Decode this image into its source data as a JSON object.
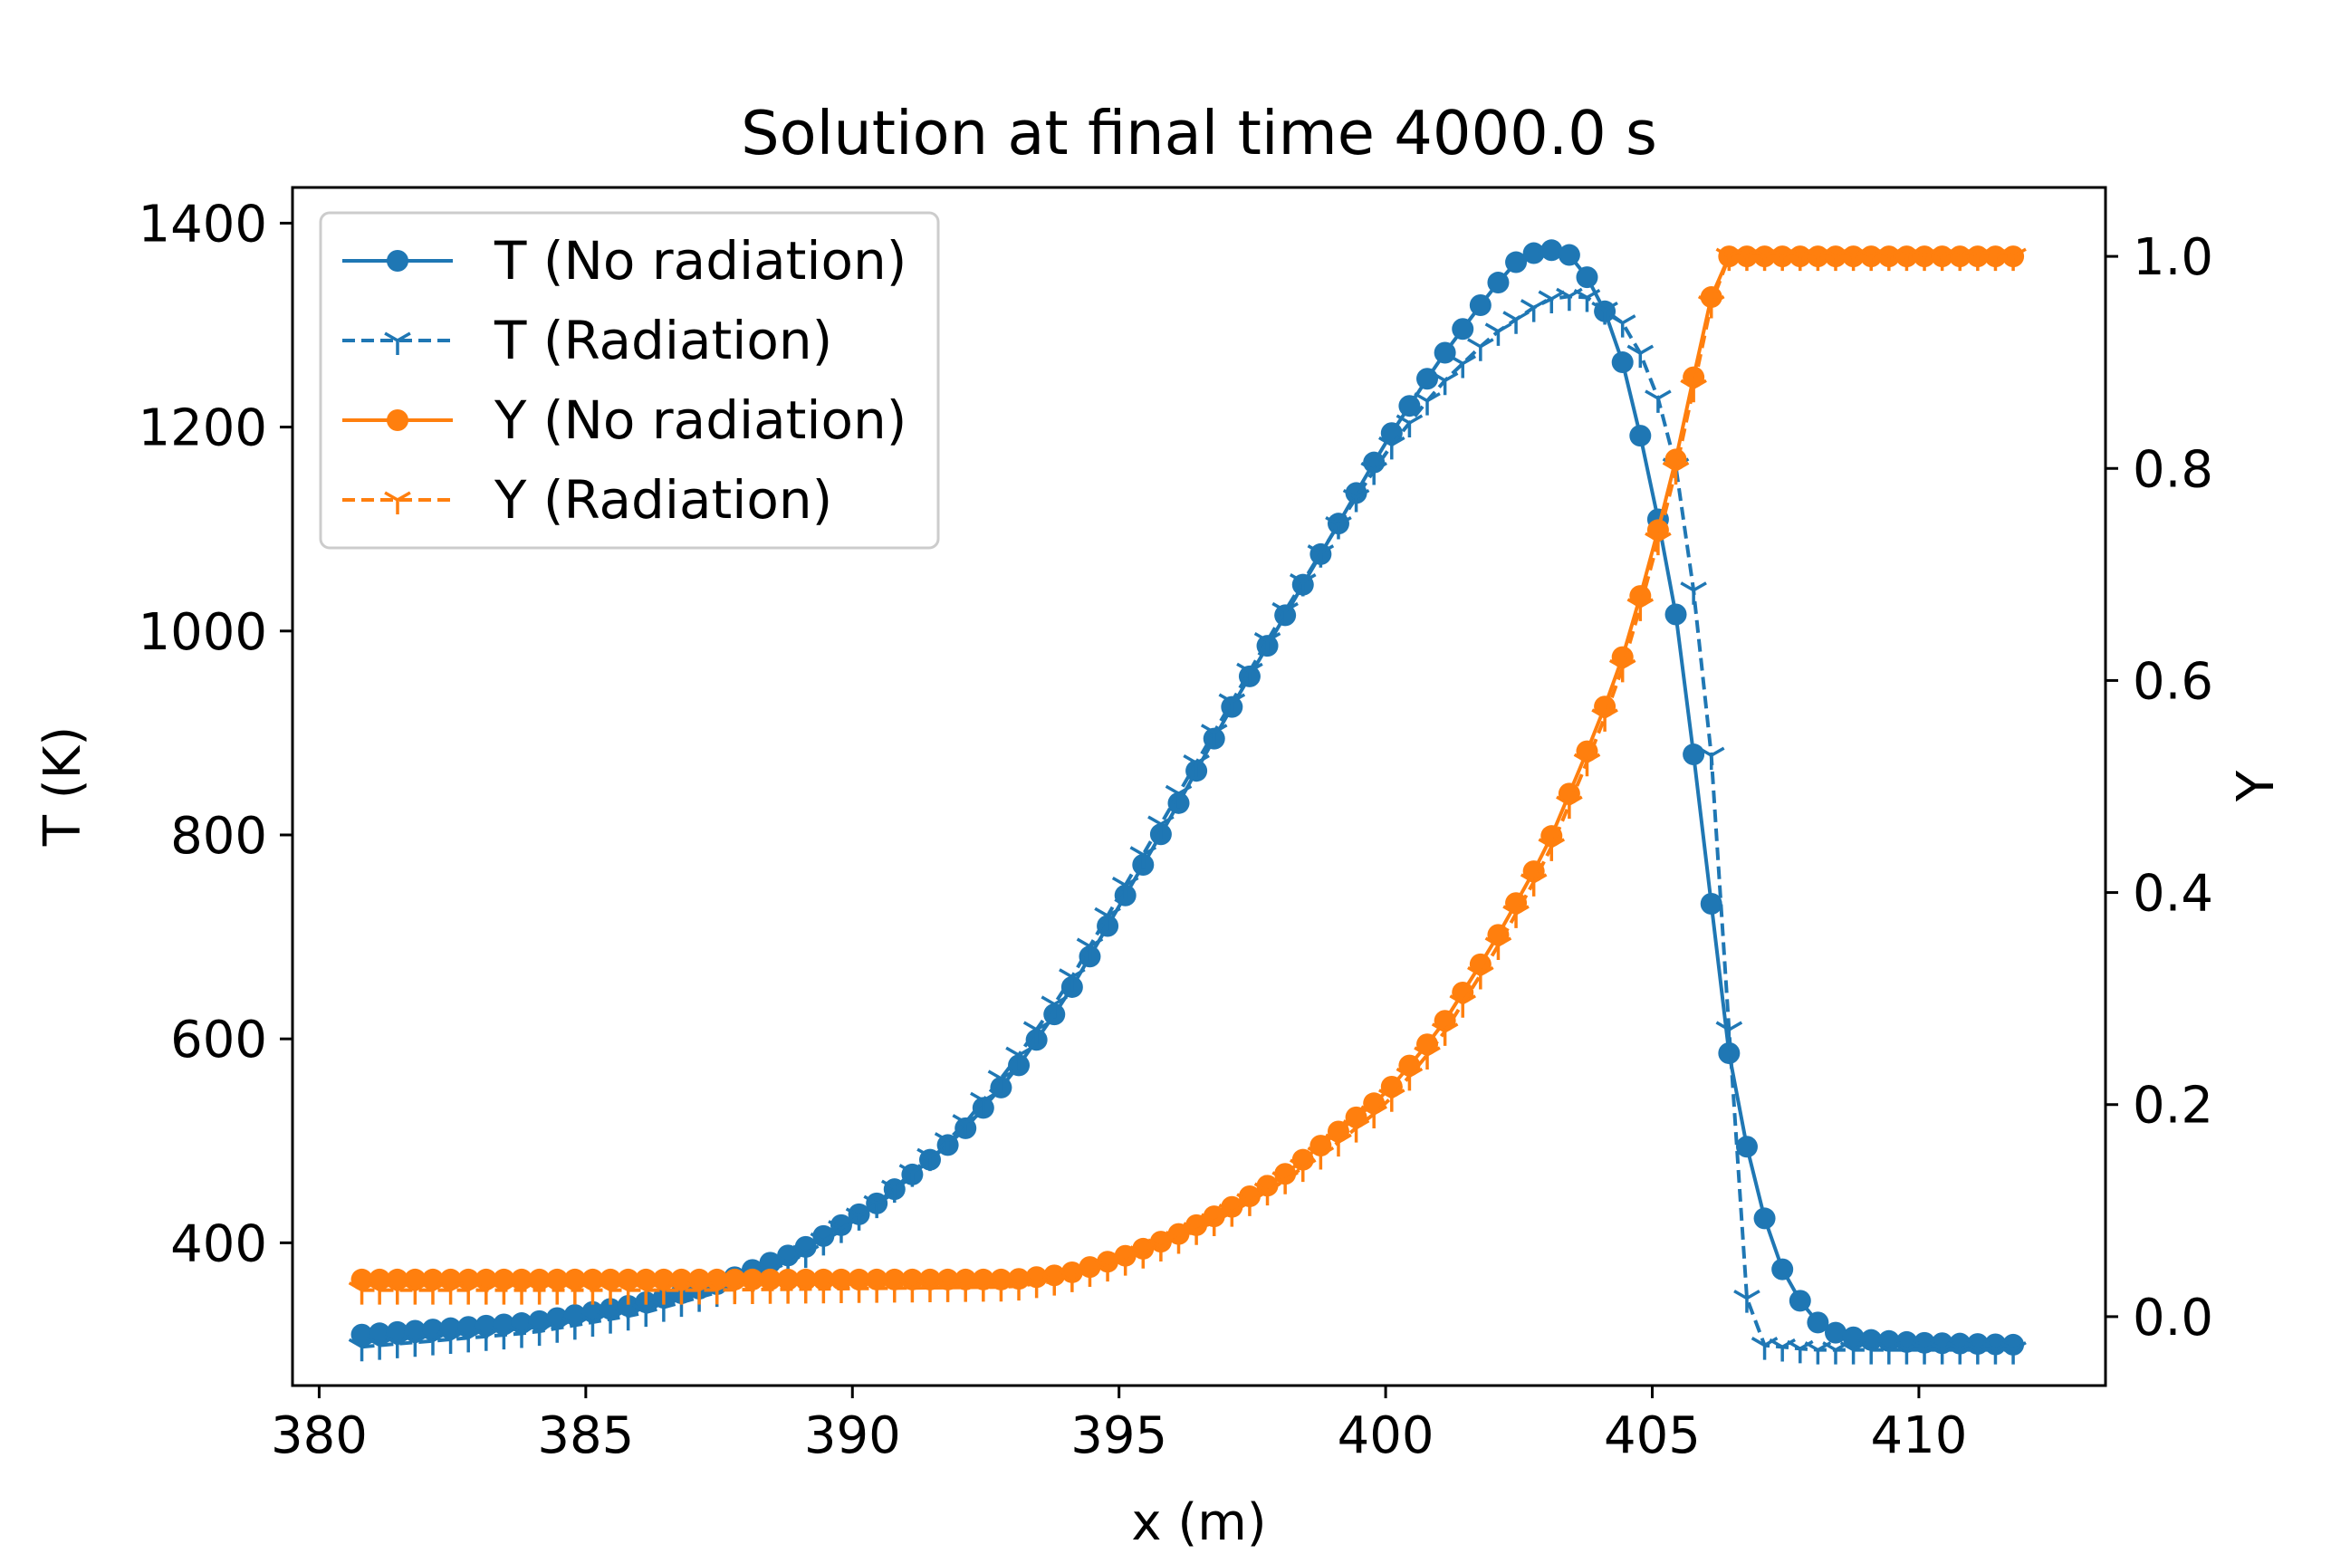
{
  "chart_data": {
    "type": "line",
    "title": "Solution at final time 4000.0 s",
    "xlabel": "x (m)",
    "ylabel_left": "T (K)",
    "ylabel_right": "Y",
    "xlim": [
      379.5,
      413.5
    ],
    "ylim_left": [
      260,
      1435
    ],
    "ylim_right": [
      -0.065,
      1.065
    ],
    "x_ticks": [
      380,
      385,
      390,
      395,
      400,
      405,
      410
    ],
    "y_left_ticks": [
      400,
      600,
      800,
      1000,
      1200,
      1400
    ],
    "y_right_ticks": [
      0.0,
      0.2,
      0.4,
      0.6,
      0.8,
      1.0
    ],
    "y_right_tick_labels": [
      "0.0",
      "0.2",
      "0.4",
      "0.6",
      "0.8",
      "1.0"
    ],
    "grid": false,
    "legend_position": "upper-left",
    "colors": {
      "T": "#1f77b4",
      "Y": "#ff7f0e"
    },
    "x_range": [
      380.8,
      411.8
    ],
    "x_step": 0.333,
    "series": [
      {
        "name": "T (No radiation)",
        "axis": "left",
        "color": "#1f77b4",
        "linestyle": "solid",
        "marker": "circle",
        "points": [
          [
            380.8,
            310
          ],
          [
            384.0,
            322
          ],
          [
            386.0,
            340
          ],
          [
            387.5,
            360
          ],
          [
            389.0,
            392
          ],
          [
            390.5,
            440
          ],
          [
            392.0,
            505
          ],
          [
            393.0,
            565
          ],
          [
            394.0,
            640
          ],
          [
            395.0,
            730
          ],
          [
            396.0,
            820
          ],
          [
            397.0,
            915
          ],
          [
            398.0,
            1005
          ],
          [
            399.0,
            1095
          ],
          [
            400.0,
            1185
          ],
          [
            401.0,
            1265
          ],
          [
            402.0,
            1335
          ],
          [
            402.5,
            1365
          ],
          [
            403.0,
            1375
          ],
          [
            403.5,
            1368
          ],
          [
            404.0,
            1330
          ],
          [
            404.5,
            1255
          ],
          [
            405.0,
            1140
          ],
          [
            405.5,
            1000
          ],
          [
            406.0,
            780
          ],
          [
            406.5,
            560
          ],
          [
            407.0,
            440
          ],
          [
            407.5,
            365
          ],
          [
            408.0,
            325
          ],
          [
            408.5,
            310
          ],
          [
            409.0,
            305
          ],
          [
            410.0,
            302
          ],
          [
            411.8,
            300
          ]
        ]
      },
      {
        "name": "T (Radiation)",
        "axis": "left",
        "color": "#1f77b4",
        "linestyle": "dashed",
        "marker": "tri",
        "points": [
          [
            380.8,
            298
          ],
          [
            384.0,
            312
          ],
          [
            386.0,
            330
          ],
          [
            387.5,
            352
          ],
          [
            389.0,
            385
          ],
          [
            390.5,
            440
          ],
          [
            392.0,
            510
          ],
          [
            393.0,
            575
          ],
          [
            394.0,
            650
          ],
          [
            395.0,
            740
          ],
          [
            396.0,
            830
          ],
          [
            397.0,
            920
          ],
          [
            398.0,
            1010
          ],
          [
            399.0,
            1095
          ],
          [
            400.0,
            1175
          ],
          [
            401.0,
            1240
          ],
          [
            402.0,
            1290
          ],
          [
            403.0,
            1325
          ],
          [
            403.7,
            1330
          ],
          [
            404.5,
            1300
          ],
          [
            405.0,
            1250
          ],
          [
            405.5,
            1150
          ],
          [
            406.0,
            950
          ],
          [
            406.3,
            750
          ],
          [
            406.6,
            450
          ],
          [
            406.8,
            330
          ],
          [
            407.0,
            300
          ],
          [
            408.0,
            295
          ],
          [
            411.8,
            295
          ]
        ]
      },
      {
        "name": "Y (No radiation)",
        "axis": "right",
        "color": "#ff7f0e",
        "linestyle": "solid",
        "marker": "circle",
        "points": [
          [
            380.8,
            0.035
          ],
          [
            387.0,
            0.035
          ],
          [
            393.0,
            0.035
          ],
          [
            394.0,
            0.04
          ],
          [
            395.0,
            0.055
          ],
          [
            396.0,
            0.075
          ],
          [
            397.0,
            0.1
          ],
          [
            398.0,
            0.13
          ],
          [
            399.0,
            0.17
          ],
          [
            400.0,
            0.21
          ],
          [
            401.0,
            0.27
          ],
          [
            402.0,
            0.35
          ],
          [
            403.0,
            0.44
          ],
          [
            404.0,
            0.56
          ],
          [
            404.5,
            0.63
          ],
          [
            405.0,
            0.72
          ],
          [
            405.5,
            0.82
          ],
          [
            406.0,
            0.94
          ],
          [
            406.3,
            1.0
          ],
          [
            407.0,
            1.0
          ],
          [
            411.8,
            1.0
          ]
        ]
      },
      {
        "name": "Y (Radiation)",
        "axis": "right",
        "color": "#ff7f0e",
        "linestyle": "dashed",
        "marker": "tri",
        "points": [
          [
            380.8,
            0.025
          ],
          [
            387.0,
            0.025
          ],
          [
            393.0,
            0.028
          ],
          [
            394.0,
            0.035
          ],
          [
            395.0,
            0.05
          ],
          [
            396.0,
            0.07
          ],
          [
            397.0,
            0.095
          ],
          [
            398.0,
            0.125
          ],
          [
            399.0,
            0.16
          ],
          [
            400.0,
            0.2
          ],
          [
            401.0,
            0.26
          ],
          [
            402.0,
            0.34
          ],
          [
            403.0,
            0.43
          ],
          [
            404.0,
            0.55
          ],
          [
            404.5,
            0.62
          ],
          [
            405.0,
            0.71
          ],
          [
            405.5,
            0.81
          ],
          [
            406.0,
            0.93
          ],
          [
            406.3,
            1.0
          ],
          [
            407.0,
            1.0
          ],
          [
            411.8,
            1.0
          ]
        ]
      }
    ]
  }
}
